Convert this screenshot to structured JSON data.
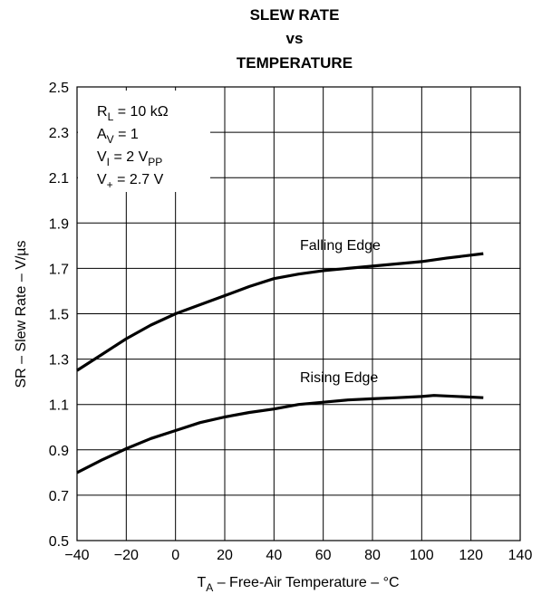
{
  "chart_data": {
    "type": "line",
    "title": [
      "SLEW RATE",
      "vs",
      "TEMPERATURE"
    ],
    "xlabel": {
      "main": "T",
      "sub": "A",
      "rest": " – Free-Air Temperature – °C"
    },
    "ylabel": "SR – Slew Rate – V/µs",
    "xlim": [
      -40,
      140
    ],
    "ylim": [
      0.5,
      2.5
    ],
    "x_ticks": [
      -40,
      -20,
      0,
      20,
      40,
      60,
      80,
      100,
      120,
      140
    ],
    "y_ticks": [
      "0.5",
      "0.7",
      "0.9",
      "1.1",
      "1.3",
      "1.5",
      "1.7",
      "1.9",
      "2.1",
      "2.3",
      "2.5"
    ],
    "grid": true,
    "conditions": [
      {
        "main": "R",
        "sub": "L",
        "rest": " = 10 kΩ"
      },
      {
        "main": "A",
        "sub": "V",
        "rest": " = 1"
      },
      {
        "main": "V",
        "sub": "I",
        "rest": " = 2 V",
        "sub2": "PP"
      },
      {
        "main": "V",
        "sub": "+",
        "rest": " = 2.7 V"
      }
    ],
    "series": [
      {
        "name": "Falling Edge",
        "x": [
          -40,
          -30,
          -20,
          -10,
          0,
          10,
          20,
          30,
          40,
          50,
          60,
          70,
          80,
          90,
          100,
          110,
          125
        ],
        "y": [
          1.25,
          1.32,
          1.39,
          1.45,
          1.5,
          1.54,
          1.58,
          1.62,
          1.655,
          1.675,
          1.69,
          1.7,
          1.71,
          1.72,
          1.73,
          1.745,
          1.765
        ]
      },
      {
        "name": "Rising Edge",
        "x": [
          -40,
          -30,
          -20,
          -10,
          0,
          10,
          20,
          30,
          40,
          50,
          60,
          70,
          80,
          90,
          100,
          105,
          125
        ],
        "y": [
          0.8,
          0.855,
          0.905,
          0.95,
          0.985,
          1.02,
          1.045,
          1.065,
          1.08,
          1.1,
          1.11,
          1.12,
          1.125,
          1.13,
          1.135,
          1.14,
          1.13
        ]
      }
    ],
    "line_color": "#000000",
    "grid_color": "#000000"
  }
}
